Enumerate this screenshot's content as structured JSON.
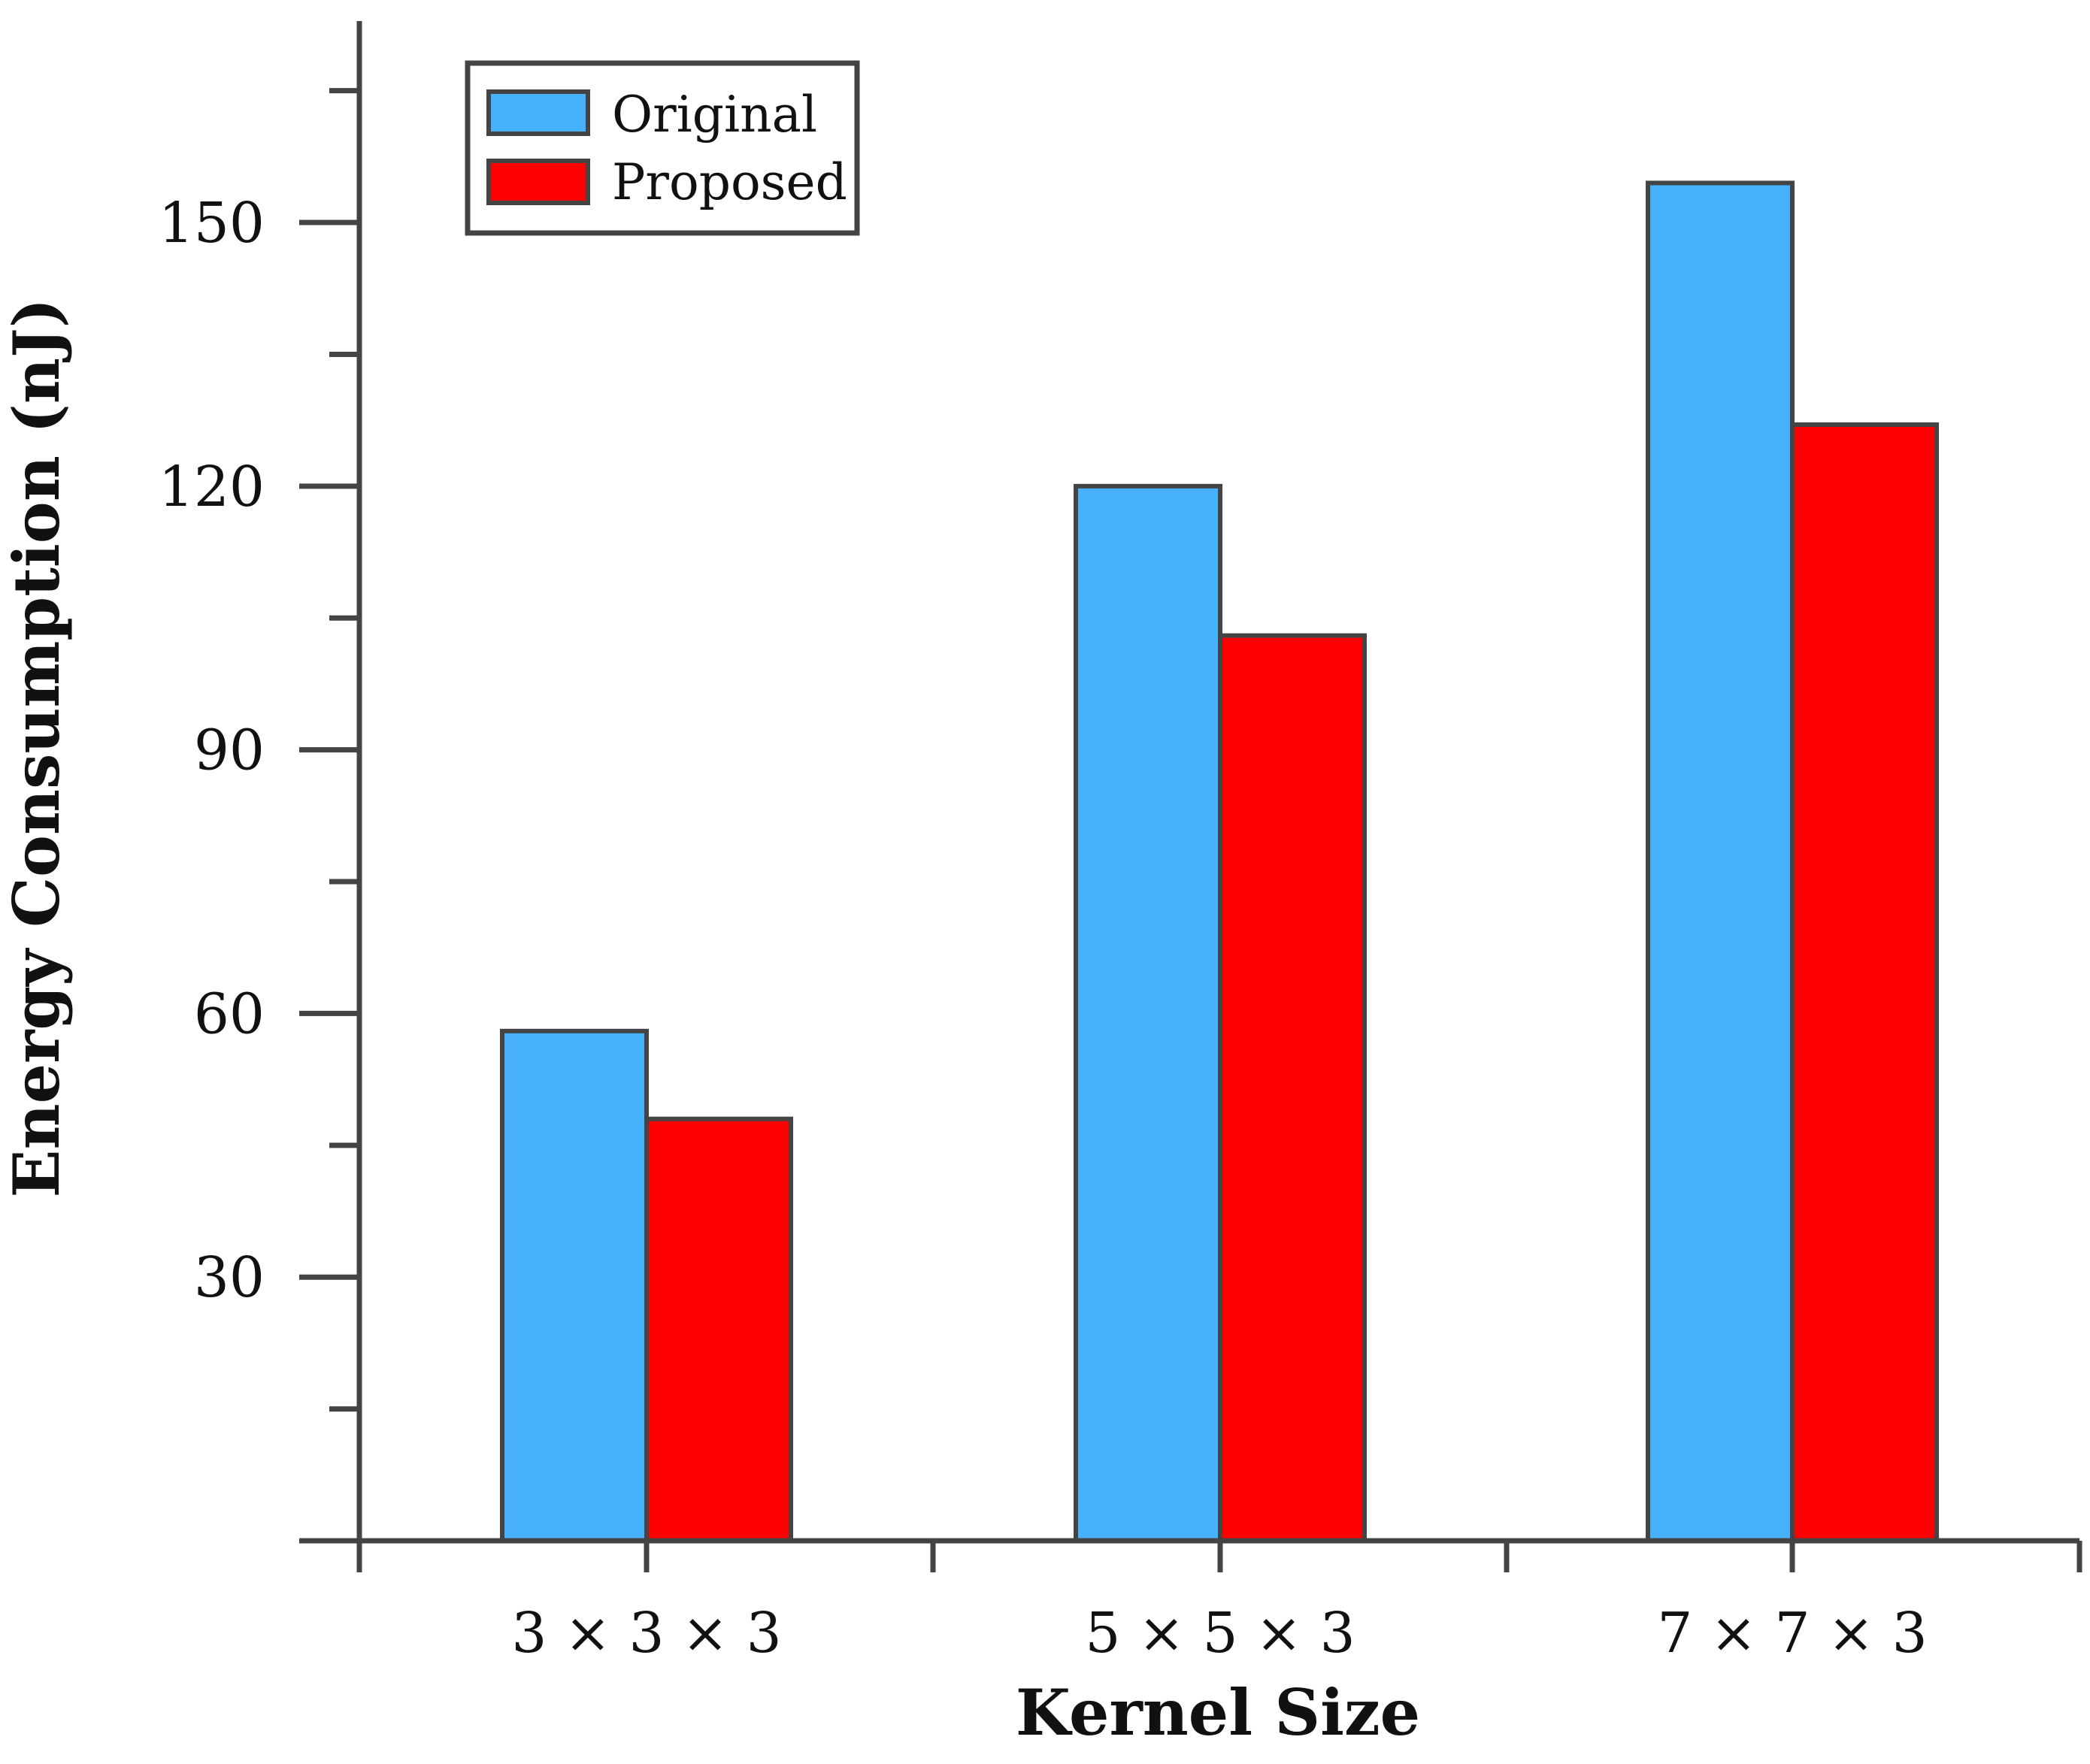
{
  "chart_data": {
    "type": "bar",
    "title": "",
    "xlabel": "Kernel Size",
    "ylabel": "Energy Consumption (nJ)",
    "categories": [
      "3 × 3 × 3",
      "5 × 5 × 3",
      "7 × 7 × 3"
    ],
    "series": [
      {
        "name": "Original",
        "color": "#48b1fe",
        "values": [
          58,
          120,
          154.5
        ]
      },
      {
        "name": "Proposed",
        "color": "#ff0000",
        "values": [
          48,
          103,
          127
        ]
      }
    ],
    "ylim": [
      0,
      172
    ],
    "yticks": [
      30,
      60,
      90,
      120,
      150
    ],
    "yticks_minor": [
      15,
      45,
      75,
      105,
      135,
      165
    ],
    "grid": false,
    "legend_position": "top-left",
    "axis_color": "#444444",
    "bar_edge_color": "#444444"
  }
}
